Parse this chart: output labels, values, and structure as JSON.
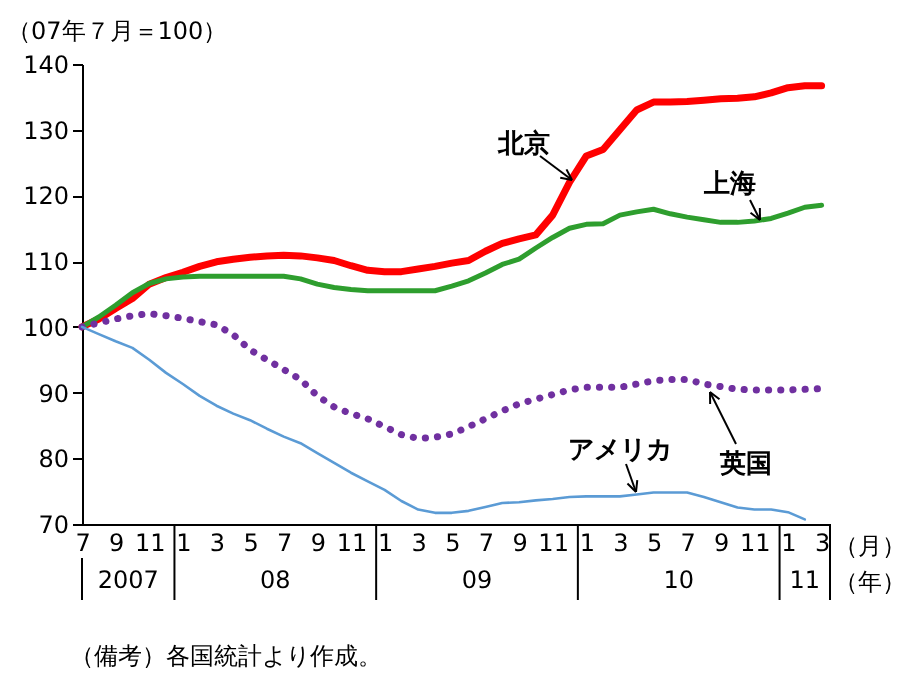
{
  "chart_data": {
    "type": "line",
    "ylabel": "（07年７月＝100）",
    "ylim": [
      70,
      140
    ],
    "yticks": [
      70,
      80,
      90,
      100,
      110,
      120,
      130,
      140
    ],
    "grid": false,
    "legend": false,
    "marker": "none",
    "categories": [
      "7",
      null,
      "9",
      null,
      "11",
      null,
      "1",
      null,
      "3",
      null,
      "5",
      null,
      "7",
      null,
      "9",
      null,
      "11",
      null,
      "1",
      null,
      "3",
      null,
      "5",
      null,
      "7",
      null,
      "9",
      null,
      "11",
      null,
      "1",
      null,
      "3",
      null,
      "5",
      null,
      "7",
      null,
      "9",
      null,
      "11",
      null,
      "1",
      null,
      "3"
    ],
    "series": [
      {
        "name": "北京",
        "color": "#ff0000",
        "line_style": "solid",
        "values": [
          100,
          101.2,
          102.8,
          104.3,
          106.5,
          107.5,
          108.3,
          109.2,
          109.9,
          110.3,
          110.6,
          110.8,
          110.9,
          110.8,
          110.5,
          110.1,
          109.3,
          108.6,
          108.4,
          108.4,
          108.8,
          109.2,
          109.7,
          110.1,
          111.5,
          112.7,
          113.4,
          114,
          117,
          122,
          126,
          127,
          130,
          133,
          134.2,
          134.2,
          134.3,
          134.5,
          134.7,
          134.8,
          135,
          135.6,
          136.4,
          136.7,
          136.7
        ]
      },
      {
        "name": "上海",
        "color": "#2e9e2e",
        "line_style": "solid",
        "values": [
          100,
          101.5,
          103.3,
          105.2,
          106.6,
          107.3,
          107.6,
          107.7,
          107.7,
          107.7,
          107.7,
          107.7,
          107.7,
          107.3,
          106.5,
          106,
          105.7,
          105.5,
          105.5,
          105.5,
          105.5,
          105.5,
          106.2,
          107,
          108.2,
          109.5,
          110.3,
          112,
          113.6,
          115,
          115.6,
          115.7,
          117,
          117.5,
          117.9,
          117.2,
          116.7,
          116.3,
          115.9,
          115.9,
          116.1,
          116.5,
          117.3,
          118.2,
          118.5
        ]
      },
      {
        "name": "英国",
        "color": "#7030a0",
        "line_style": "dotted",
        "values": [
          100,
          100.6,
          101.2,
          101.7,
          102,
          101.7,
          101.3,
          100.8,
          100.3,
          98.8,
          96.5,
          95,
          93.5,
          92,
          89.5,
          87.8,
          86.8,
          86,
          84.8,
          83.6,
          83,
          83.2,
          83.7,
          84.8,
          86,
          87.2,
          88.3,
          89,
          89.7,
          90.4,
          90.8,
          90.8,
          90.8,
          91.3,
          91.8,
          92,
          92,
          91.3,
          90.9,
          90.5,
          90.4,
          90.4,
          90.4,
          90.5,
          90.6
        ]
      },
      {
        "name": "アメリカ",
        "color": "#5b9bd5",
        "line_style": "solid",
        "values": [
          100,
          98.9,
          97.8,
          96.8,
          95,
          93,
          91.3,
          89.5,
          88,
          86.8,
          85.8,
          84.5,
          83.3,
          82.3,
          80.8,
          79.3,
          77.8,
          76.5,
          75.2,
          73.5,
          72.2,
          71.7,
          71.7,
          72,
          72.6,
          73.2,
          73.3,
          73.6,
          73.8,
          74.1,
          74.2,
          74.2,
          74.2,
          74.5,
          74.8,
          74.8,
          74.8,
          74.1,
          73.3,
          72.5,
          72.2,
          72.2,
          71.8,
          70.7,
          null
        ]
      }
    ],
    "annotations": [
      "2007",
      "08",
      "09",
      "10",
      "11",
      "（月）",
      "（年）",
      "（備考）各国統計より作成。"
    ]
  }
}
